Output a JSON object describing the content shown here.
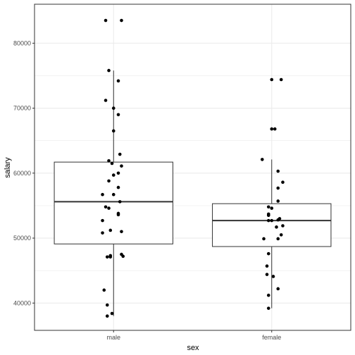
{
  "chart_data": {
    "type": "boxplot",
    "xlabel": "sex",
    "ylabel": "salary",
    "categories": [
      "male",
      "female"
    ],
    "ylim": [
      35800,
      86000
    ],
    "y_ticks": [
      40000,
      50000,
      60000,
      70000,
      80000
    ],
    "grid": true,
    "colors": {
      "points": "#000000",
      "box_stroke": "#333333",
      "grid": "#ebebeb",
      "panel_border": "#333333",
      "tick_text": "#4d4d4d"
    },
    "groups": [
      {
        "name": "male",
        "box": {
          "lower_whisker": 38000,
          "q1": 49100,
          "median": 55600,
          "q3": 61700,
          "upper_whisker": 75800
        },
        "points": [
          {
            "dx": -0.05,
            "y": 83500
          },
          {
            "dx": 0.05,
            "y": 83500
          },
          {
            "dx": -0.03,
            "y": 75800
          },
          {
            "dx": 0.03,
            "y": 74200
          },
          {
            "dx": -0.05,
            "y": 71200
          },
          {
            "dx": 0.0,
            "y": 70000
          },
          {
            "dx": 0.03,
            "y": 69000
          },
          {
            "dx": 0.0,
            "y": 66500
          },
          {
            "dx": 0.04,
            "y": 62900
          },
          {
            "dx": -0.03,
            "y": 61900
          },
          {
            "dx": -0.01,
            "y": 61500
          },
          {
            "dx": 0.05,
            "y": 61100
          },
          {
            "dx": 0.03,
            "y": 60000
          },
          {
            "dx": 0.0,
            "y": 59700
          },
          {
            "dx": -0.03,
            "y": 58800
          },
          {
            "dx": 0.03,
            "y": 57800
          },
          {
            "dx": -0.07,
            "y": 56700
          },
          {
            "dx": 0.0,
            "y": 56700
          },
          {
            "dx": 0.04,
            "y": 55600
          },
          {
            "dx": -0.05,
            "y": 54800
          },
          {
            "dx": -0.03,
            "y": 54600
          },
          {
            "dx": 0.03,
            "y": 53800
          },
          {
            "dx": 0.03,
            "y": 53600
          },
          {
            "dx": -0.07,
            "y": 52700
          },
          {
            "dx": -0.02,
            "y": 51200
          },
          {
            "dx": -0.07,
            "y": 50800
          },
          {
            "dx": 0.05,
            "y": 51000
          },
          {
            "dx": 0.05,
            "y": 47500
          },
          {
            "dx": 0.06,
            "y": 47200
          },
          {
            "dx": -0.04,
            "y": 47100
          },
          {
            "dx": -0.02,
            "y": 47100
          },
          {
            "dx": -0.02,
            "y": 47300
          },
          {
            "dx": -0.06,
            "y": 42000
          },
          {
            "dx": -0.04,
            "y": 39700
          },
          {
            "dx": -0.01,
            "y": 38400
          },
          {
            "dx": -0.04,
            "y": 38000
          }
        ]
      },
      {
        "name": "female",
        "box": {
          "lower_whisker": 39200,
          "q1": 48700,
          "median": 52700,
          "q3": 55300,
          "upper_whisker": 62100
        },
        "points": [
          {
            "dx": 0.0,
            "y": 74400
          },
          {
            "dx": 0.06,
            "y": 74400
          },
          {
            "dx": 0.0,
            "y": 66800
          },
          {
            "dx": 0.02,
            "y": 66800
          },
          {
            "dx": -0.06,
            "y": 62100
          },
          {
            "dx": 0.04,
            "y": 60300
          },
          {
            "dx": 0.07,
            "y": 58600
          },
          {
            "dx": 0.04,
            "y": 57700
          },
          {
            "dx": 0.04,
            "y": 55700
          },
          {
            "dx": -0.02,
            "y": 54800
          },
          {
            "dx": 0.0,
            "y": 54600
          },
          {
            "dx": -0.02,
            "y": 53700
          },
          {
            "dx": -0.02,
            "y": 53500
          },
          {
            "dx": 0.05,
            "y": 53000
          },
          {
            "dx": 0.04,
            "y": 52800
          },
          {
            "dx": -0.02,
            "y": 52700
          },
          {
            "dx": 0.0,
            "y": 52700
          },
          {
            "dx": 0.07,
            "y": 51900
          },
          {
            "dx": 0.03,
            "y": 51700
          },
          {
            "dx": 0.06,
            "y": 50500
          },
          {
            "dx": -0.05,
            "y": 49900
          },
          {
            "dx": 0.04,
            "y": 49900
          },
          {
            "dx": -0.02,
            "y": 47600
          },
          {
            "dx": -0.03,
            "y": 45700
          },
          {
            "dx": -0.03,
            "y": 44400
          },
          {
            "dx": 0.01,
            "y": 44100
          },
          {
            "dx": 0.04,
            "y": 42200
          },
          {
            "dx": -0.02,
            "y": 41200
          },
          {
            "dx": -0.02,
            "y": 39200
          }
        ]
      }
    ]
  }
}
